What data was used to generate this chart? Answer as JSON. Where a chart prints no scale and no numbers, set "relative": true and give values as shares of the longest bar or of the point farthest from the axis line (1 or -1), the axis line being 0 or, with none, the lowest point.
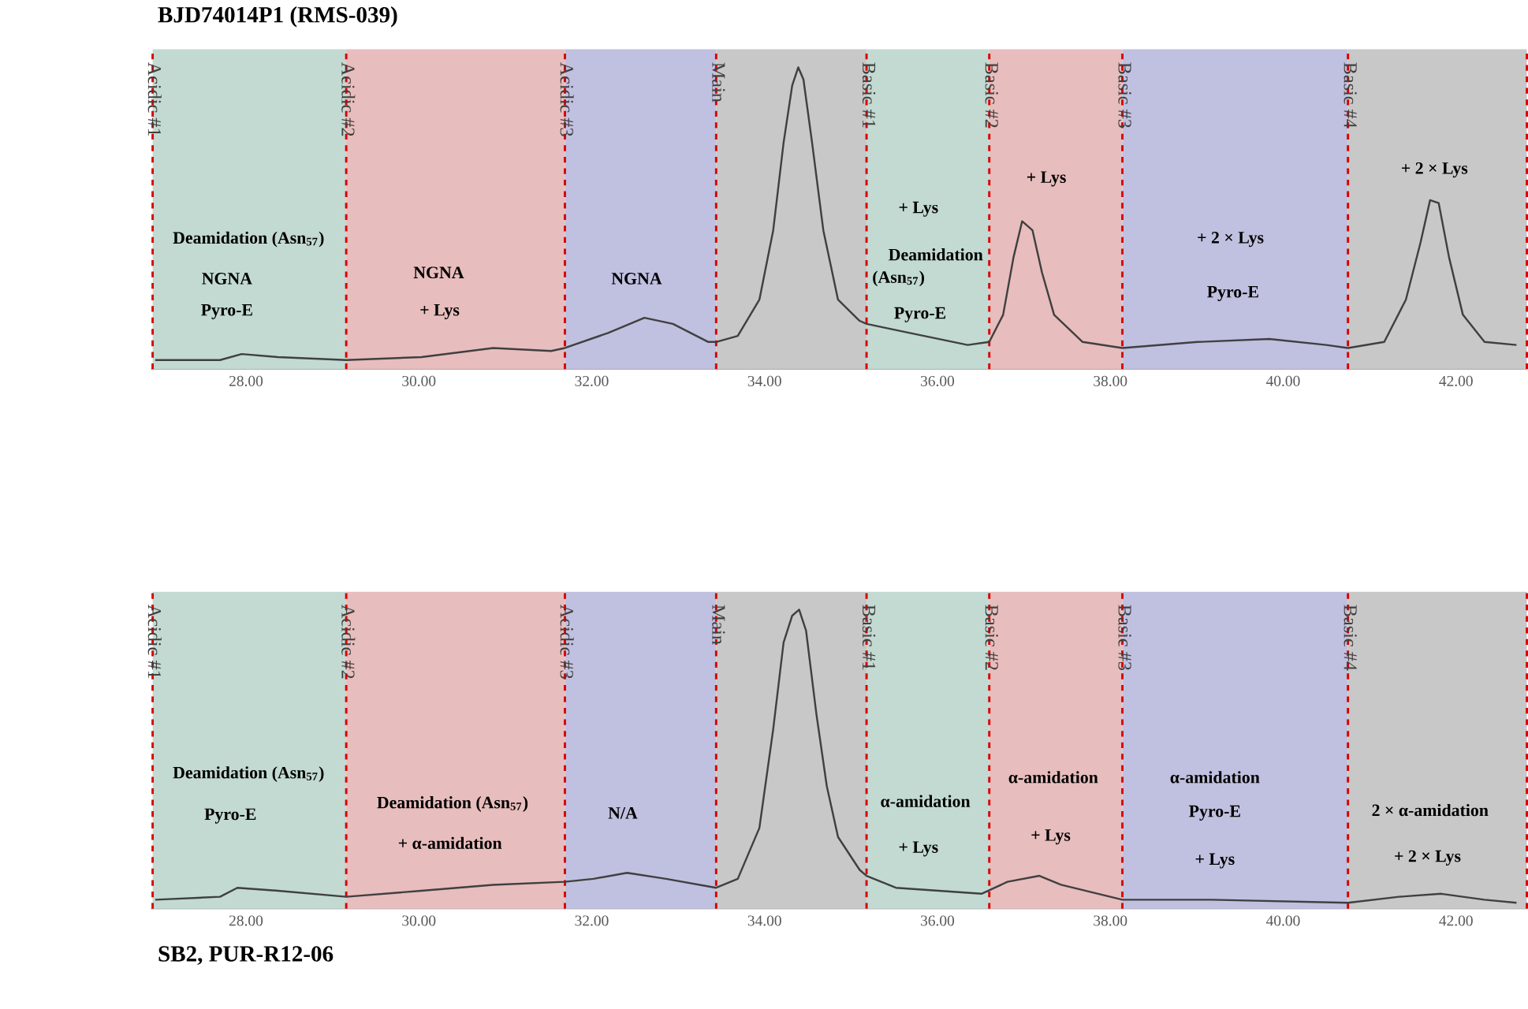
{
  "chart_data": [
    {
      "type": "line",
      "title": "BJD74014P1 (RMS-039)",
      "relative": true,
      "xlim": [
        26.9,
        42.82
      ],
      "xticks": [
        {
          "value": 28,
          "label": "28.00"
        },
        {
          "value": 30,
          "label": "30.00"
        },
        {
          "value": 32,
          "label": "32.00"
        },
        {
          "value": 34,
          "label": "34.00"
        },
        {
          "value": 36,
          "label": "36.00"
        },
        {
          "value": 38,
          "label": "38.00"
        },
        {
          "value": 40,
          "label": "40.00"
        },
        {
          "value": 42,
          "label": "42.00"
        }
      ],
      "series": [
        {
          "color": "#404040",
          "x": [
            26.95,
            27.7,
            27.95,
            28.37,
            29.16,
            30.03,
            30.86,
            31.53,
            31.69,
            32.19,
            32.61,
            32.94,
            33.35,
            33.44,
            33.69,
            33.94,
            34.1,
            34.22,
            34.32,
            34.39,
            34.45,
            34.55,
            34.68,
            34.85,
            35.1,
            35.18,
            35.68,
            36.35,
            36.6,
            36.76,
            36.88,
            36.98,
            37.1,
            37.21,
            37.35,
            37.68,
            38.14,
            39.01,
            39.84,
            40.5,
            40.75,
            41.17,
            41.42,
            41.59,
            41.7,
            41.8,
            41.92,
            42.08,
            42.33,
            42.7
          ],
          "values": [
            0.03,
            0.03,
            0.05,
            0.04,
            0.03,
            0.04,
            0.07,
            0.06,
            0.07,
            0.12,
            0.17,
            0.15,
            0.09,
            0.09,
            0.11,
            0.23,
            0.46,
            0.75,
            0.94,
            1,
            0.96,
            0.75,
            0.46,
            0.23,
            0.16,
            0.15,
            0.12,
            0.08,
            0.09,
            0.18,
            0.37,
            0.49,
            0.46,
            0.32,
            0.18,
            0.09,
            0.07,
            0.09,
            0.1,
            0.08,
            0.07,
            0.09,
            0.23,
            0.42,
            0.56,
            0.55,
            0.37,
            0.18,
            0.09,
            0.08
          ]
        }
      ],
      "bands": [
        {
          "axis": "x",
          "from": 26.92,
          "to": 29.16,
          "label": "Acidic #1",
          "color": "#c2dad2"
        },
        {
          "axis": "x",
          "from": 29.16,
          "to": 31.69,
          "label": "Acidic #2",
          "color": "#e8bdbd"
        },
        {
          "axis": "x",
          "from": 31.69,
          "to": 33.44,
          "label": "Acidic #3",
          "color": "#c0c0e0"
        },
        {
          "axis": "x",
          "from": 33.44,
          "to": 35.18,
          "label": "Main",
          "color": "#c8c8c8"
        },
        {
          "axis": "x",
          "from": 35.18,
          "to": 36.6,
          "label": "Basic #1",
          "color": "#c2dad2"
        },
        {
          "axis": "x",
          "from": 36.6,
          "to": 38.14,
          "label": "Basic #2",
          "color": "#e8bdbd"
        },
        {
          "axis": "x",
          "from": 38.14,
          "to": 40.75,
          "label": "Basic #3",
          "color": "#c0c0e0"
        },
        {
          "axis": "x",
          "from": 40.75,
          "to": 42.82,
          "label": "Basic #4",
          "color": "#c8c8c8"
        }
      ],
      "annotations": [
        "Deamidation (Asn$_{57}$)",
        "NGNA",
        "Pyro-E",
        "NGNA",
        "+ Lys",
        "NGNA",
        "+ Lys",
        "Deamidation",
        "(Asn$_{57}$)",
        "Pyro-E",
        "+ Lys",
        "+ 2 × Lys",
        "Pyro-E",
        "+ 2 × Lys"
      ],
      "ref_lines": [
        {
          "axis": "x",
          "value": 26.92,
          "color": "#d90000",
          "line_style": "dashed"
        },
        {
          "axis": "x",
          "value": 29.16,
          "color": "#d90000",
          "line_style": "dashed"
        },
        {
          "axis": "x",
          "value": 31.69,
          "color": "#d90000",
          "line_style": "dashed"
        },
        {
          "axis": "x",
          "value": 33.44,
          "color": "#d90000",
          "line_style": "dashed"
        },
        {
          "axis": "x",
          "value": 35.18,
          "color": "#d90000",
          "line_style": "dashed"
        },
        {
          "axis": "x",
          "value": 36.6,
          "color": "#d90000",
          "line_style": "dashed"
        },
        {
          "axis": "x",
          "value": 38.14,
          "color": "#d90000",
          "line_style": "dashed"
        },
        {
          "axis": "x",
          "value": 40.75,
          "color": "#d90000",
          "line_style": "dashed"
        },
        {
          "axis": "x",
          "value": 42.82,
          "color": "#d90000",
          "line_style": "dashed"
        }
      ]
    },
    {
      "type": "line",
      "title": "SB2, PUR-R12-06",
      "relative": true,
      "xlim": [
        26.9,
        42.82
      ],
      "xticks": [
        {
          "value": 28,
          "label": "28.00"
        },
        {
          "value": 30,
          "label": "30.00"
        },
        {
          "value": 32,
          "label": "32.00"
        },
        {
          "value": 34,
          "label": "34.00"
        },
        {
          "value": 36,
          "label": "36.00"
        },
        {
          "value": 38,
          "label": "38.00"
        },
        {
          "value": 40,
          "label": "40.00"
        },
        {
          "value": 42,
          "label": "42.00"
        }
      ],
      "series": [
        {
          "color": "#404040",
          "x": [
            26.95,
            27.7,
            27.9,
            28.37,
            29.16,
            30.03,
            30.86,
            31.69,
            32.02,
            32.41,
            32.86,
            33.44,
            33.69,
            33.94,
            34.1,
            34.22,
            34.32,
            34.4,
            34.48,
            34.6,
            34.72,
            34.85,
            35.1,
            35.18,
            35.52,
            36.51,
            36.81,
            37.18,
            37.43,
            38.14,
            39.17,
            40.75,
            41.34,
            41.83,
            42.33,
            42.7
          ],
          "values": [
            0.03,
            0.04,
            0.07,
            0.06,
            0.04,
            0.06,
            0.08,
            0.09,
            0.1,
            0.12,
            0.1,
            0.07,
            0.1,
            0.27,
            0.6,
            0.89,
            0.98,
            1,
            0.93,
            0.65,
            0.41,
            0.24,
            0.13,
            0.11,
            0.07,
            0.05,
            0.09,
            0.11,
            0.08,
            0.03,
            0.03,
            0.02,
            0.04,
            0.05,
            0.03,
            0.02
          ]
        }
      ],
      "bands": [
        {
          "axis": "x",
          "from": 26.92,
          "to": 29.16,
          "label": "Acidic #1",
          "color": "#c2dad2"
        },
        {
          "axis": "x",
          "from": 29.16,
          "to": 31.69,
          "label": "Acidic #2",
          "color": "#e8bdbd"
        },
        {
          "axis": "x",
          "from": 31.69,
          "to": 33.44,
          "label": "Acidic #3",
          "color": "#c0c0e0"
        },
        {
          "axis": "x",
          "from": 33.44,
          "to": 35.18,
          "label": "Main",
          "color": "#c8c8c8"
        },
        {
          "axis": "x",
          "from": 35.18,
          "to": 36.6,
          "label": "Basic #1",
          "color": "#c2dad2"
        },
        {
          "axis": "x",
          "from": 36.6,
          "to": 38.14,
          "label": "Basic #2",
          "color": "#e8bdbd"
        },
        {
          "axis": "x",
          "from": 38.14,
          "to": 40.75,
          "label": "Basic #3",
          "color": "#c0c0e0"
        },
        {
          "axis": "x",
          "from": 40.75,
          "to": 42.82,
          "label": "Basic #4",
          "color": "#c8c8c8"
        }
      ],
      "annotations": [
        "Deamidation (Asn$_{57}$)",
        "Pyro-E",
        "Deamidation (Asn$_{57}$)",
        "+ α-amidation",
        "N/A",
        "α-amidation",
        "+ Lys",
        "α-amidation",
        "+ Lys",
        "α-amidation",
        "Pyro-E",
        "+ Lys",
        "2 × α-amidation",
        "+ 2 × Lys"
      ],
      "ref_lines": [
        {
          "axis": "x",
          "value": 26.92,
          "color": "#d90000",
          "line_style": "dashed"
        },
        {
          "axis": "x",
          "value": 29.16,
          "color": "#d90000",
          "line_style": "dashed"
        },
        {
          "axis": "x",
          "value": 31.69,
          "color": "#d90000",
          "line_style": "dashed"
        },
        {
          "axis": "x",
          "value": 33.44,
          "color": "#d90000",
          "line_style": "dashed"
        },
        {
          "axis": "x",
          "value": 35.18,
          "color": "#d90000",
          "line_style": "dashed"
        },
        {
          "axis": "x",
          "value": 36.6,
          "color": "#d90000",
          "line_style": "dashed"
        },
        {
          "axis": "x",
          "value": 38.14,
          "color": "#d90000",
          "line_style": "dashed"
        },
        {
          "axis": "x",
          "value": 40.75,
          "color": "#d90000",
          "line_style": "dashed"
        },
        {
          "axis": "x",
          "value": 42.82,
          "color": "#d90000",
          "line_style": "dashed"
        }
      ]
    }
  ]
}
